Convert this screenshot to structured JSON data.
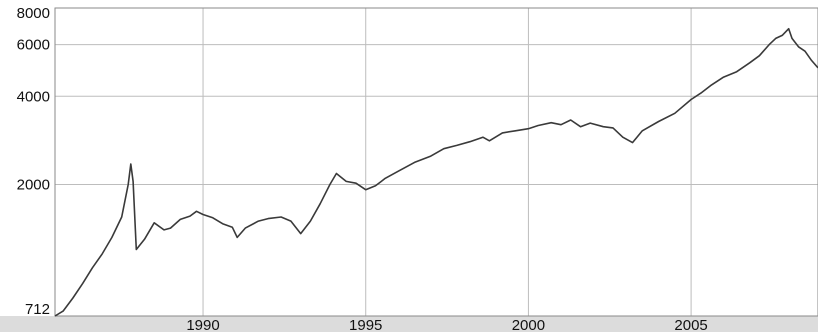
{
  "chart_data": {
    "type": "line",
    "title": "",
    "xlabel": "",
    "ylabel": "",
    "yscale": "log",
    "ylim": [
      712,
      8000
    ],
    "xlim": [
      1985.45,
      2008.9
    ],
    "grid": true,
    "y_ticks": [
      "712",
      "2000",
      "4000",
      "6000",
      "8000"
    ],
    "x_ticks": [
      "1990",
      "1995",
      "2000",
      "2005"
    ],
    "series": [
      {
        "name": "",
        "color": "#3a3a3a",
        "x": [
          1985.45,
          1985.7,
          1986.0,
          1986.3,
          1986.6,
          1986.9,
          1987.2,
          1987.5,
          1987.7,
          1987.78,
          1987.85,
          1987.95,
          1988.2,
          1988.5,
          1988.8,
          1989.0,
          1989.3,
          1989.6,
          1989.8,
          1990.0,
          1990.3,
          1990.6,
          1990.9,
          1991.05,
          1991.3,
          1991.7,
          1992.0,
          1992.4,
          1992.7,
          1993.0,
          1993.3,
          1993.6,
          1993.9,
          1994.1,
          1994.4,
          1994.7,
          1995.0,
          1995.3,
          1995.6,
          1996.0,
          1996.5,
          1997.0,
          1997.4,
          1997.8,
          1998.2,
          1998.6,
          1998.8,
          1999.2,
          1999.6,
          2000.0,
          2000.3,
          2000.7,
          2001.0,
          2001.3,
          2001.6,
          2001.9,
          2002.3,
          2002.6,
          2002.9,
          2003.2,
          2003.5,
          2004.0,
          2004.5,
          2005.0,
          2005.3,
          2005.6,
          2006.0,
          2006.4,
          2006.8,
          2007.1,
          2007.4,
          2007.6,
          2007.8,
          2008.0,
          2008.1,
          2008.3,
          2008.5,
          2008.7,
          2008.9
        ],
        "values": [
          712,
          740,
          820,
          920,
          1040,
          1160,
          1320,
          1550,
          2000,
          2350,
          2050,
          1200,
          1300,
          1480,
          1400,
          1420,
          1520,
          1560,
          1620,
          1580,
          1540,
          1470,
          1430,
          1320,
          1420,
          1500,
          1530,
          1550,
          1500,
          1360,
          1500,
          1720,
          2000,
          2180,
          2050,
          2020,
          1920,
          1980,
          2100,
          2220,
          2380,
          2500,
          2650,
          2720,
          2800,
          2900,
          2820,
          3000,
          3050,
          3100,
          3180,
          3250,
          3200,
          3320,
          3150,
          3240,
          3150,
          3120,
          2900,
          2780,
          3050,
          3280,
          3500,
          3900,
          4100,
          4350,
          4650,
          4850,
          5200,
          5500,
          6000,
          6300,
          6450,
          6800,
          6300,
          5900,
          5700,
          5300,
          5000
        ]
      }
    ]
  }
}
